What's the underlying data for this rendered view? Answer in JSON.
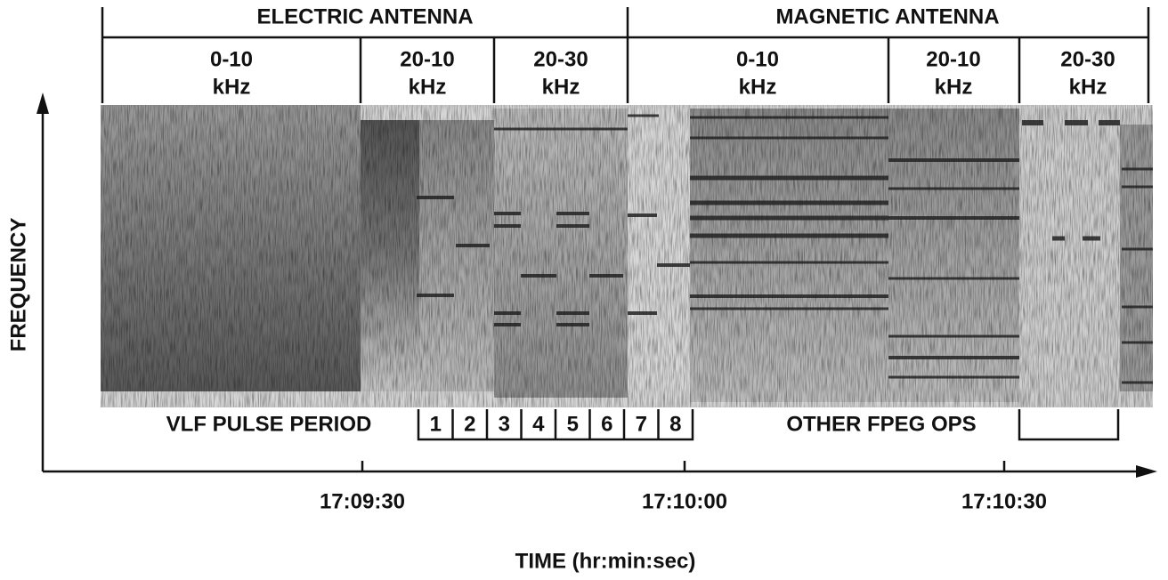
{
  "header": {
    "sections": [
      {
        "label": "ELECTRIC ANTENNA",
        "bands": [
          {
            "range": "0-10",
            "unit": "kHz"
          },
          {
            "range": "20-10",
            "unit": "kHz"
          },
          {
            "range": "20-30",
            "unit": "kHz"
          }
        ]
      },
      {
        "label": "MAGNETIC ANTENNA",
        "bands": [
          {
            "range": "0-10",
            "unit": "kHz"
          },
          {
            "range": "20-10",
            "unit": "kHz"
          },
          {
            "range": "20-30",
            "unit": "kHz"
          }
        ]
      }
    ]
  },
  "pulse_label": "VLF PULSE PERIOD",
  "pulses": [
    "1",
    "2",
    "3",
    "4",
    "5",
    "6",
    "7",
    "8"
  ],
  "other_label": "OTHER FPEG OPS",
  "y_axis_label": "FREQUENCY",
  "x_ticks": [
    "17:09:30",
    "17:10:00",
    "17:10:30"
  ],
  "x_axis_label": "TIME (hr:min:sec)"
}
